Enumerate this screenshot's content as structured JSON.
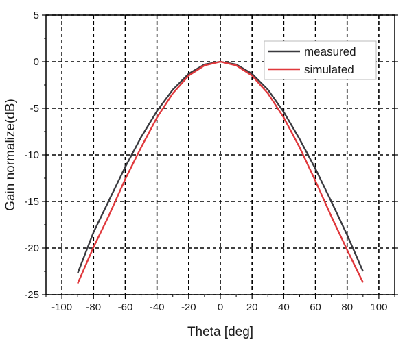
{
  "chart_data": {
    "type": "line",
    "xlabel": "Theta [deg]",
    "ylabel": "Gain normalize(dB)",
    "xlim": [
      -110,
      110
    ],
    "ylim": [
      -25,
      5
    ],
    "xticks": [
      -100,
      -80,
      -60,
      -40,
      -20,
      0,
      20,
      40,
      60,
      80,
      100
    ],
    "yticks": [
      5,
      0,
      -5,
      -10,
      -15,
      -20,
      -25
    ],
    "grid": true,
    "legend_position": "top-right",
    "series": [
      {
        "name": "measured",
        "color": "#3a3a3f",
        "x": [
          -90,
          -80,
          -70,
          -60,
          -50,
          -40,
          -30,
          -20,
          -10,
          0,
          10,
          20,
          30,
          40,
          50,
          60,
          70,
          80,
          90
        ],
        "y": [
          -22.7,
          -18.3,
          -14.8,
          -11.3,
          -8.1,
          -5.3,
          -3.0,
          -1.3,
          -0.3,
          0.0,
          -0.3,
          -1.3,
          -3.0,
          -5.4,
          -8.3,
          -11.5,
          -15.0,
          -18.6,
          -22.5
        ]
      },
      {
        "name": "simulated",
        "color": "#e0383c",
        "x": [
          -90,
          -80,
          -70,
          -60,
          -50,
          -40,
          -30,
          -20,
          -10,
          0,
          10,
          20,
          30,
          40,
          50,
          60,
          70,
          80,
          90
        ],
        "y": [
          -23.8,
          -19.9,
          -16.4,
          -12.6,
          -9.2,
          -6.0,
          -3.4,
          -1.5,
          -0.4,
          0.0,
          -0.4,
          -1.5,
          -3.4,
          -6.0,
          -9.2,
          -12.8,
          -16.6,
          -20.2,
          -23.7
        ]
      }
    ]
  }
}
